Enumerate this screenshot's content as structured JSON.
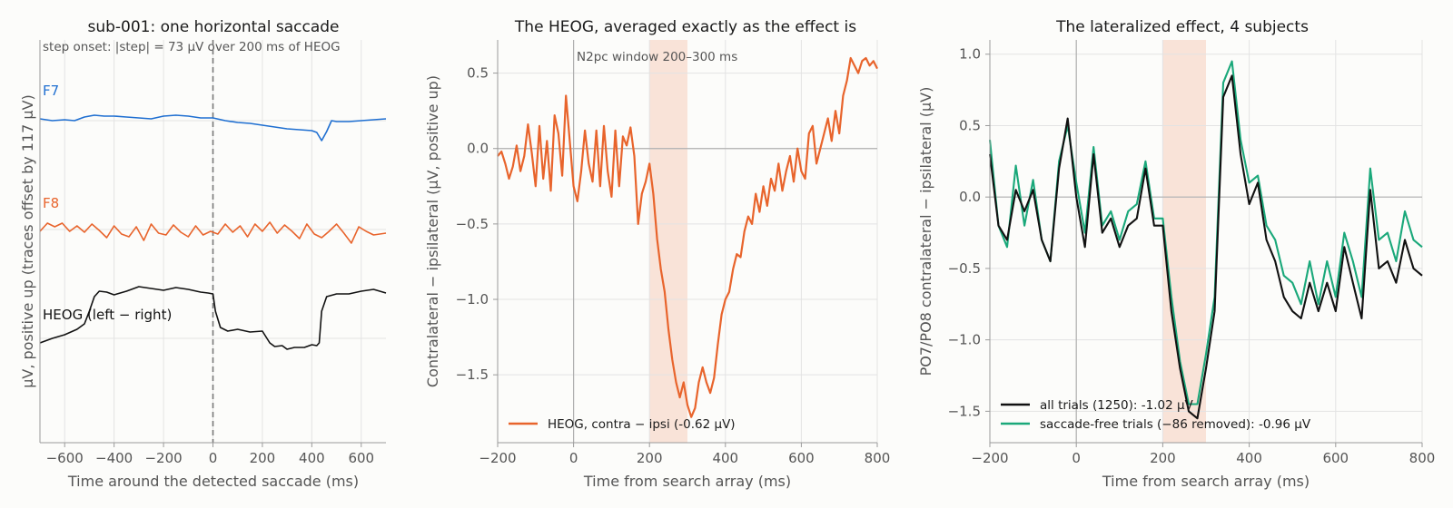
{
  "chart_data": [
    {
      "type": "line",
      "title": "sub-001: one horizontal saccade",
      "xlabel": "Time around the detected saccade (ms)",
      "ylabel": "µV, positive up (traces offset by 117 µV)",
      "xlim": [
        -700,
        700
      ],
      "xticks": [
        -600,
        -400,
        -200,
        0,
        200,
        400,
        600
      ],
      "grid": true,
      "annotation": "step onset:  |step| = 73 µV over 200 ms of HEOG",
      "vline_x": 0,
      "series": [
        {
          "name": "F7",
          "color": "#1f6fd1",
          "x": [
            -700,
            -650,
            -600,
            -560,
            -520,
            -480,
            -440,
            -400,
            -350,
            -300,
            -250,
            -200,
            -150,
            -100,
            -50,
            0,
            50,
            100,
            150,
            200,
            250,
            300,
            350,
            400,
            420,
            440,
            460,
            480,
            500,
            550,
            600,
            650,
            700
          ],
          "y": [
            2,
            0,
            1,
            0,
            4,
            6,
            5,
            5,
            4,
            3,
            2,
            5,
            6,
            5,
            3,
            3,
            0,
            -2,
            -3,
            -5,
            -7,
            -9,
            -10,
            -11,
            -13,
            -22,
            -12,
            0,
            -1,
            -1,
            0,
            1,
            2
          ]
        },
        {
          "name": "F8",
          "color": "#e8642c",
          "x": [
            -700,
            -670,
            -640,
            -610,
            -580,
            -550,
            -520,
            -490,
            -460,
            -430,
            -400,
            -370,
            -340,
            -310,
            -280,
            -250,
            -220,
            -190,
            -160,
            -130,
            -100,
            -70,
            -40,
            -10,
            20,
            50,
            80,
            110,
            140,
            170,
            200,
            230,
            260,
            290,
            320,
            350,
            380,
            410,
            440,
            470,
            500,
            530,
            560,
            590,
            620,
            650,
            700
          ],
          "y": [
            -2,
            7,
            3,
            7,
            -2,
            4,
            -3,
            6,
            -1,
            -9,
            4,
            -5,
            -8,
            3,
            -12,
            6,
            -4,
            -6,
            5,
            -3,
            -8,
            4,
            -6,
            -2,
            -5,
            6,
            -3,
            4,
            -8,
            6,
            -2,
            8,
            -4,
            5,
            -2,
            -10,
            6,
            -5,
            -9,
            -2,
            6,
            -4,
            -15,
            3,
            -2,
            -6,
            -4
          ]
        },
        {
          "name": "HEOG (left − right)",
          "color": "#111111",
          "x": [
            -700,
            -650,
            -600,
            -550,
            -520,
            -500,
            -480,
            -460,
            -430,
            -400,
            -350,
            -300,
            -250,
            -200,
            -150,
            -100,
            -50,
            -20,
            0,
            10,
            30,
            60,
            100,
            150,
            200,
            230,
            250,
            280,
            300,
            330,
            370,
            400,
            420,
            430,
            440,
            460,
            500,
            550,
            600,
            650,
            700
          ],
          "y": [
            -5,
            0,
            4,
            10,
            16,
            30,
            46,
            52,
            51,
            48,
            52,
            57,
            55,
            53,
            56,
            54,
            51,
            50,
            49,
            30,
            12,
            8,
            10,
            7,
            8,
            -5,
            -9,
            -8,
            -12,
            -10,
            -10,
            -7,
            -8,
            -5,
            30,
            46,
            49,
            49,
            52,
            54,
            50
          ]
        }
      ]
    },
    {
      "type": "line",
      "title": "The HEOG, averaged exactly as the effect is",
      "xlabel": "Time from search array (ms)",
      "ylabel": "Contralateral − ipsilateral (µV, positive up)",
      "xlim": [
        -200,
        800
      ],
      "ylim": [
        -1.95,
        0.72
      ],
      "xticks": [
        -200,
        0,
        200,
        400,
        600,
        800
      ],
      "yticks": [
        -1.5,
        -1.0,
        -0.5,
        0.0,
        0.5
      ],
      "grid": true,
      "shaded_window": [
        200,
        300
      ],
      "annotation": "N2pc window 200–300 ms",
      "legend_position": "lower-left",
      "series": [
        {
          "name": "HEOG, contra − ipsi (-0.62 µV)",
          "color": "#e8642c",
          "x": [
            -200,
            -190,
            -180,
            -170,
            -160,
            -150,
            -140,
            -130,
            -120,
            -110,
            -100,
            -90,
            -80,
            -70,
            -60,
            -50,
            -40,
            -30,
            -20,
            -10,
            0,
            10,
            20,
            30,
            40,
            50,
            60,
            70,
            80,
            90,
            100,
            110,
            120,
            130,
            140,
            150,
            160,
            170,
            180,
            190,
            200,
            210,
            220,
            230,
            240,
            250,
            260,
            270,
            280,
            290,
            300,
            310,
            320,
            330,
            340,
            350,
            360,
            370,
            380,
            390,
            400,
            410,
            420,
            430,
            440,
            450,
            460,
            470,
            480,
            490,
            500,
            510,
            520,
            530,
            540,
            550,
            560,
            570,
            580,
            590,
            600,
            610,
            620,
            630,
            640,
            650,
            660,
            670,
            680,
            690,
            700,
            710,
            720,
            730,
            740,
            750,
            760,
            770,
            780,
            790,
            800
          ],
          "y": [
            -0.05,
            -0.02,
            -0.1,
            -0.2,
            -0.12,
            0.02,
            -0.15,
            -0.05,
            0.16,
            -0.03,
            -0.25,
            0.15,
            -0.2,
            0.05,
            -0.28,
            0.22,
            0.1,
            -0.18,
            0.35,
            0.05,
            -0.25,
            -0.35,
            -0.15,
            0.12,
            -0.1,
            -0.22,
            0.12,
            -0.25,
            0.15,
            -0.15,
            -0.32,
            0.12,
            -0.25,
            0.08,
            0.02,
            0.14,
            -0.05,
            -0.5,
            -0.3,
            -0.22,
            -0.1,
            -0.3,
            -0.6,
            -0.8,
            -0.95,
            -1.2,
            -1.4,
            -1.55,
            -1.65,
            -1.55,
            -1.7,
            -1.78,
            -1.72,
            -1.55,
            -1.45,
            -1.55,
            -1.62,
            -1.52,
            -1.3,
            -1.1,
            -1.0,
            -0.95,
            -0.8,
            -0.7,
            -0.72,
            -0.55,
            -0.45,
            -0.5,
            -0.3,
            -0.42,
            -0.25,
            -0.38,
            -0.2,
            -0.28,
            -0.1,
            -0.28,
            -0.15,
            -0.05,
            -0.22,
            0.0,
            -0.15,
            -0.2,
            0.1,
            0.15,
            -0.1,
            0.0,
            0.1,
            0.2,
            0.05,
            0.25,
            0.1,
            0.35,
            0.45,
            0.6,
            0.55,
            0.5,
            0.58,
            0.6,
            0.55,
            0.58,
            0.53
          ]
        }
      ]
    },
    {
      "type": "line",
      "title": "The lateralized effect, 4 subjects",
      "xlabel": "Time from search array (ms)",
      "ylabel": "PO7/PO8 contralateral − ipsilateral (µV)",
      "xlim": [
        -200,
        800
      ],
      "ylim": [
        -1.72,
        1.1
      ],
      "xticks": [
        -200,
        0,
        200,
        400,
        600,
        800
      ],
      "yticks": [
        -1.5,
        -1.0,
        -0.5,
        0.0,
        0.5,
        1.0
      ],
      "grid": true,
      "shaded_window": [
        200,
        300
      ],
      "legend_position": "lower-left",
      "series": [
        {
          "name": "all trials (1250): -1.02 µV",
          "color": "#111111",
          "x": [
            -200,
            -180,
            -160,
            -140,
            -120,
            -100,
            -80,
            -60,
            -40,
            -20,
            0,
            20,
            40,
            60,
            80,
            100,
            120,
            140,
            160,
            180,
            200,
            220,
            240,
            260,
            280,
            300,
            320,
            340,
            360,
            380,
            400,
            420,
            440,
            460,
            480,
            500,
            520,
            540,
            560,
            580,
            600,
            620,
            640,
            660,
            680,
            700,
            720,
            740,
            760,
            780,
            800
          ],
          "y": [
            0.3,
            -0.2,
            -0.3,
            0.05,
            -0.1,
            0.05,
            -0.3,
            -0.45,
            0.2,
            0.55,
            0.0,
            -0.35,
            0.3,
            -0.25,
            -0.15,
            -0.35,
            -0.2,
            -0.15,
            0.2,
            -0.2,
            -0.2,
            -0.8,
            -1.2,
            -1.5,
            -1.55,
            -1.2,
            -0.8,
            0.7,
            0.85,
            0.3,
            -0.05,
            0.1,
            -0.3,
            -0.45,
            -0.7,
            -0.8,
            -0.85,
            -0.6,
            -0.8,
            -0.6,
            -0.8,
            -0.35,
            -0.6,
            -0.85,
            0.05,
            -0.5,
            -0.45,
            -0.6,
            -0.3,
            -0.5,
            -0.55
          ]
        },
        {
          "name": "saccade-free trials (−86 removed): -0.96 µV",
          "color": "#1aa87a",
          "x": [
            -200,
            -180,
            -160,
            -140,
            -120,
            -100,
            -80,
            -60,
            -40,
            -20,
            0,
            20,
            40,
            60,
            80,
            100,
            120,
            140,
            160,
            180,
            200,
            220,
            240,
            260,
            280,
            300,
            320,
            340,
            360,
            380,
            400,
            420,
            440,
            460,
            480,
            500,
            520,
            540,
            560,
            580,
            600,
            620,
            640,
            660,
            680,
            700,
            720,
            740,
            760,
            780,
            800
          ],
          "y": [
            0.4,
            -0.2,
            -0.35,
            0.22,
            -0.2,
            0.12,
            -0.3,
            -0.45,
            0.25,
            0.5,
            0.1,
            -0.25,
            0.35,
            -0.2,
            -0.1,
            -0.3,
            -0.1,
            -0.05,
            0.25,
            -0.15,
            -0.15,
            -0.7,
            -1.15,
            -1.45,
            -1.45,
            -1.1,
            -0.7,
            0.8,
            0.95,
            0.4,
            0.1,
            0.15,
            -0.2,
            -0.3,
            -0.55,
            -0.6,
            -0.75,
            -0.45,
            -0.75,
            -0.45,
            -0.7,
            -0.25,
            -0.45,
            -0.7,
            0.2,
            -0.3,
            -0.25,
            -0.45,
            -0.1,
            -0.3,
            -0.35
          ]
        }
      ]
    }
  ]
}
